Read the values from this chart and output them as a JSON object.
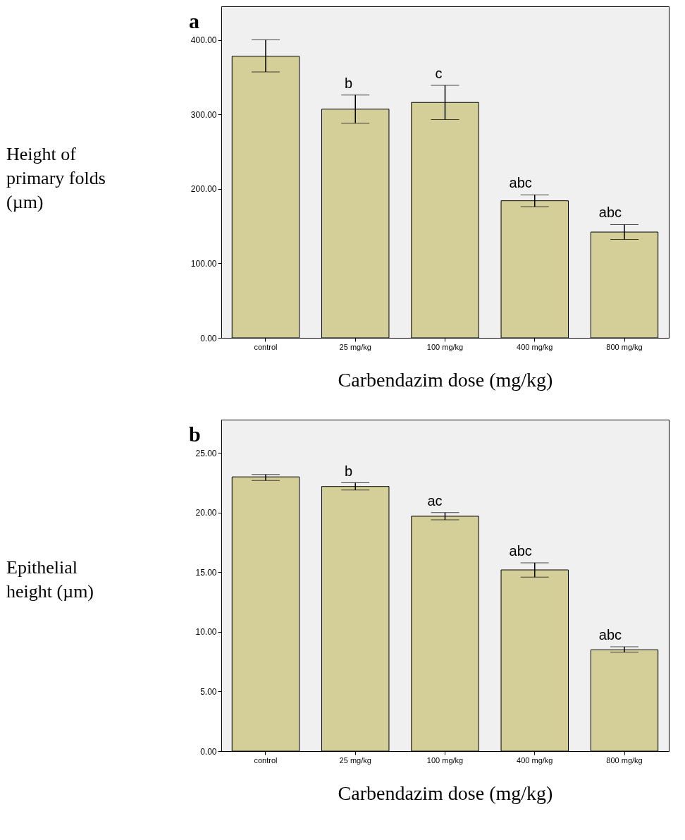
{
  "chart_data": [
    {
      "type": "bar",
      "title": "a",
      "xlabel": "Carbendazim dose (mg/kg)",
      "ylabel": "Height of primary folds (µm)",
      "categories": [
        "control",
        "25 mg/kg",
        "100 mg/kg",
        "400 mg/kg",
        "800 mg/kg"
      ],
      "values": [
        378,
        307,
        316,
        184,
        142
      ],
      "color": "#d4cf98",
      "errors": [
        [
          357,
          400
        ],
        [
          288,
          326
        ],
        [
          293,
          339
        ],
        [
          176,
          192
        ],
        [
          132,
          152
        ]
      ],
      "ylim": [
        0,
        445
      ],
      "yticks": [
        {
          "value": 0,
          "label": "0.00"
        },
        {
          "value": 100,
          "label": "100.00"
        },
        {
          "value": 200,
          "label": "200.00"
        },
        {
          "value": 300,
          "label": "300.00"
        },
        {
          "value": 400,
          "label": "400.00"
        }
      ],
      "annotations": [
        "b",
        "c",
        "abc",
        "abc"
      ],
      "grid": false
    },
    {
      "type": "bar",
      "title": "b",
      "xlabel": "Carbendazim dose (mg/kg)",
      "ylabel": "Epithelial height (µm)",
      "categories": [
        "control",
        "25 mg/kg",
        "100 mg/kg",
        "400 mg/kg",
        "800 mg/kg"
      ],
      "values": [
        23.0,
        22.2,
        19.7,
        15.2,
        8.5
      ],
      "color": "#d4cf98",
      "errors": [
        [
          22.7,
          23.2
        ],
        [
          21.9,
          22.5
        ],
        [
          19.4,
          20.0
        ],
        [
          14.6,
          15.8
        ],
        [
          8.3,
          8.75
        ]
      ],
      "ylim": [
        0,
        27.8
      ],
      "yticks": [
        {
          "value": 0,
          "label": "0.00"
        },
        {
          "value": 5,
          "label": "5.00"
        },
        {
          "value": 10,
          "label": "10.00"
        },
        {
          "value": 15,
          "label": "15.00"
        },
        {
          "value": 20,
          "label": "20.00"
        },
        {
          "value": 25,
          "label": "25.00"
        }
      ],
      "annotations": [
        "b",
        "ac",
        "abc",
        "abc"
      ],
      "grid": false
    }
  ]
}
